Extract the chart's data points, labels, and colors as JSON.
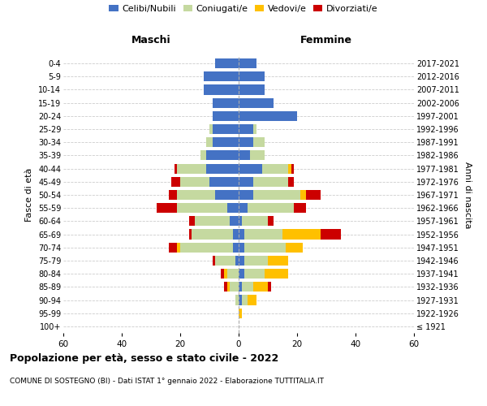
{
  "age_groups": [
    "100+",
    "95-99",
    "90-94",
    "85-89",
    "80-84",
    "75-79",
    "70-74",
    "65-69",
    "60-64",
    "55-59",
    "50-54",
    "45-49",
    "40-44",
    "35-39",
    "30-34",
    "25-29",
    "20-24",
    "15-19",
    "10-14",
    "5-9",
    "0-4"
  ],
  "birth_years": [
    "≤ 1921",
    "1922-1926",
    "1927-1931",
    "1932-1936",
    "1937-1941",
    "1942-1946",
    "1947-1951",
    "1952-1956",
    "1957-1961",
    "1962-1966",
    "1967-1971",
    "1972-1976",
    "1977-1981",
    "1982-1986",
    "1987-1991",
    "1992-1996",
    "1997-2001",
    "2002-2006",
    "2007-2011",
    "2012-2016",
    "2017-2021"
  ],
  "maschi": {
    "celibi": [
      0,
      0,
      0,
      0,
      0,
      1,
      2,
      2,
      3,
      4,
      8,
      10,
      11,
      11,
      9,
      9,
      9,
      9,
      12,
      12,
      8
    ],
    "coniugati": [
      0,
      0,
      1,
      3,
      4,
      7,
      18,
      14,
      12,
      17,
      13,
      10,
      10,
      2,
      2,
      1,
      0,
      0,
      0,
      0,
      0
    ],
    "vedovi": [
      0,
      0,
      0,
      1,
      1,
      0,
      1,
      0,
      0,
      0,
      0,
      0,
      0,
      0,
      0,
      0,
      0,
      0,
      0,
      0,
      0
    ],
    "divorziati": [
      0,
      0,
      0,
      1,
      1,
      1,
      3,
      1,
      2,
      7,
      3,
      3,
      1,
      0,
      0,
      0,
      0,
      0,
      0,
      0,
      0
    ]
  },
  "femmine": {
    "nubili": [
      0,
      0,
      1,
      1,
      2,
      2,
      2,
      2,
      1,
      3,
      5,
      5,
      8,
      4,
      5,
      5,
      20,
      12,
      9,
      9,
      6
    ],
    "coniugate": [
      0,
      0,
      2,
      4,
      7,
      8,
      14,
      13,
      9,
      16,
      16,
      12,
      9,
      5,
      4,
      1,
      0,
      0,
      0,
      0,
      0
    ],
    "vedove": [
      0,
      1,
      3,
      5,
      8,
      7,
      6,
      13,
      0,
      0,
      2,
      0,
      1,
      0,
      0,
      0,
      0,
      0,
      0,
      0,
      0
    ],
    "divorziate": [
      0,
      0,
      0,
      1,
      0,
      0,
      0,
      7,
      2,
      4,
      5,
      2,
      1,
      0,
      0,
      0,
      0,
      0,
      0,
      0,
      0
    ]
  },
  "colors": {
    "celibi": "#4472c4",
    "coniugati": "#c5d9a0",
    "vedovi": "#ffc000",
    "divorziati": "#cc0000"
  },
  "title": "Popolazione per età, sesso e stato civile - 2022",
  "subtitle": "COMUNE DI SOSTEGNO (BI) - Dati ISTAT 1° gennaio 2022 - Elaborazione TUTTITALIA.IT",
  "xlabel_left": "Maschi",
  "xlabel_right": "Femmine",
  "ylabel_left": "Fasce di età",
  "ylabel_right": "Anni di nascita",
  "xlim": 60,
  "legend_labels": [
    "Celibi/Nubili",
    "Coniugati/e",
    "Vedovi/e",
    "Divorziati/e"
  ],
  "background_color": "#ffffff"
}
